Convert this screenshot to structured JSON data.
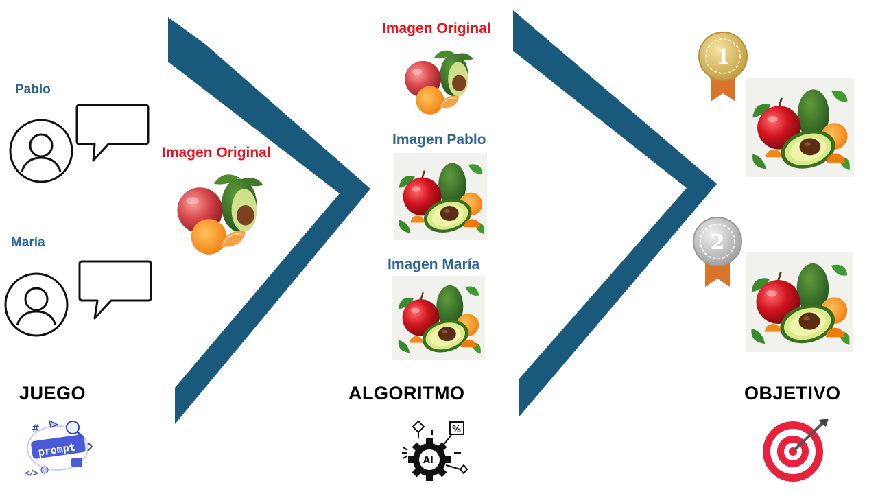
{
  "players": {
    "pablo": {
      "name": "Pablo"
    },
    "maria": {
      "name": "María"
    }
  },
  "labels": {
    "left_original": "Imagen Original",
    "mid_original": "Imagen Original",
    "mid_pablo": "Imagen Pablo",
    "mid_maria": "Imagen María"
  },
  "sections": {
    "juego": "JUEGO",
    "algoritmo": "ALGORITMO",
    "objetivo": "OBJETIVO"
  },
  "icons": {
    "prompt_text": "prompt",
    "ai_text": "AI",
    "percent_text": "%"
  },
  "medals": {
    "first": "1",
    "second": "2"
  },
  "colors": {
    "chevron": "#195a7c",
    "label_blue": "#2e6496",
    "label_red": "#e8141c",
    "target_red": "#e8213d",
    "gold": "#d7b55a",
    "silver": "#b5b5b5",
    "ribbon": "#d9742a"
  }
}
